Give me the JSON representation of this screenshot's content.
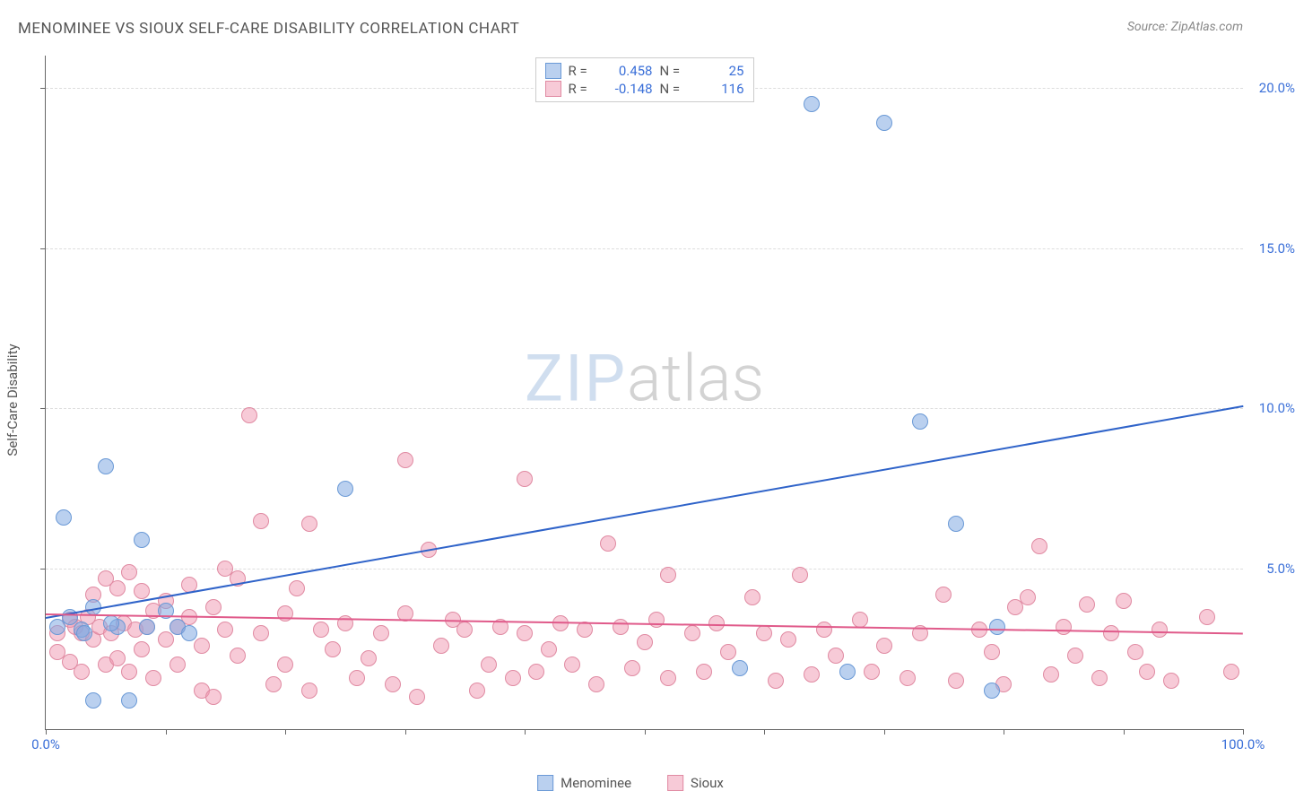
{
  "title": "MENOMINEE VS SIOUX SELF-CARE DISABILITY CORRELATION CHART",
  "source": "Source: ZipAtlas.com",
  "ylabel": "Self-Care Disability",
  "watermark": {
    "zip": "ZIP",
    "atlas": "atlas"
  },
  "chart": {
    "type": "scatter",
    "background_color": "#ffffff",
    "grid_color": "#dddddd",
    "axis_color": "#666666",
    "xlim": [
      0,
      100
    ],
    "ylim": [
      0,
      21
    ],
    "xticks": [
      0,
      10,
      20,
      30,
      40,
      50,
      60,
      70,
      80,
      90,
      100
    ],
    "xtick_labels": {
      "0": "0.0%",
      "100": "100.0%"
    },
    "yticks": [
      5,
      10,
      15,
      20
    ],
    "ytick_labels": {
      "5": "5.0%",
      "10": "10.0%",
      "15": "15.0%",
      "20": "20.0%"
    },
    "point_radius": 9,
    "point_border_width": 1.2,
    "title_fontsize": 17,
    "label_fontsize": 15,
    "tick_color": "#3a6fd8"
  },
  "series": [
    {
      "name": "Menominee",
      "fill_color": "rgba(130,170,225,0.55)",
      "border_color": "#6a99d6",
      "line_color": "#2f63c9",
      "R": "0.458",
      "N": "25",
      "trend": {
        "x1": 0,
        "y1": 3.5,
        "x2": 100,
        "y2": 10.1
      },
      "points": [
        [
          1,
          3.2
        ],
        [
          1.5,
          6.6
        ],
        [
          2,
          3.5
        ],
        [
          3,
          3.1
        ],
        [
          4,
          0.9
        ],
        [
          4,
          3.8
        ],
        [
          5,
          8.2
        ],
        [
          6,
          3.2
        ],
        [
          7,
          0.9
        ],
        [
          8,
          5.9
        ],
        [
          10,
          3.7
        ],
        [
          11,
          3.2
        ],
        [
          12,
          3.0
        ],
        [
          25,
          7.5
        ],
        [
          58,
          1.9
        ],
        [
          64,
          19.5
        ],
        [
          67,
          1.8
        ],
        [
          70,
          18.9
        ],
        [
          73,
          9.6
        ],
        [
          76,
          6.4
        ],
        [
          79,
          1.2
        ],
        [
          79.5,
          3.2
        ],
        [
          3.2,
          3.0
        ],
        [
          5.5,
          3.3
        ],
        [
          8.5,
          3.2
        ]
      ]
    },
    {
      "name": "Sioux",
      "fill_color": "rgba(240,150,175,0.5)",
      "border_color": "#e08aa2",
      "line_color": "#e05a8a",
      "R": "-0.148",
      "N": "116",
      "trend": {
        "x1": 0,
        "y1": 3.6,
        "x2": 100,
        "y2": 3.0
      },
      "points": [
        [
          1,
          3.0
        ],
        [
          1,
          2.4
        ],
        [
          2,
          3.4
        ],
        [
          2,
          2.1
        ],
        [
          2.5,
          3.2
        ],
        [
          3,
          3.0
        ],
        [
          3,
          1.8
        ],
        [
          3.5,
          3.5
        ],
        [
          4,
          2.8
        ],
        [
          4,
          4.2
        ],
        [
          4.5,
          3.2
        ],
        [
          5,
          2.0
        ],
        [
          5,
          4.7
        ],
        [
          5.5,
          3.0
        ],
        [
          6,
          2.2
        ],
        [
          6,
          4.4
        ],
        [
          6.5,
          3.3
        ],
        [
          7,
          1.8
        ],
        [
          7,
          4.9
        ],
        [
          7.5,
          3.1
        ],
        [
          8,
          2.5
        ],
        [
          8,
          4.3
        ],
        [
          8.5,
          3.2
        ],
        [
          9,
          1.6
        ],
        [
          9,
          3.7
        ],
        [
          10,
          2.8
        ],
        [
          10,
          4.0
        ],
        [
          11,
          3.2
        ],
        [
          11,
          2.0
        ],
        [
          12,
          3.5
        ],
        [
          12,
          4.5
        ],
        [
          13,
          2.6
        ],
        [
          13,
          1.2
        ],
        [
          14,
          3.8
        ],
        [
          14,
          1.0
        ],
        [
          15,
          3.1
        ],
        [
          15,
          5.0
        ],
        [
          16,
          2.3
        ],
        [
          16,
          4.7
        ],
        [
          17,
          9.8
        ],
        [
          18,
          6.5
        ],
        [
          18,
          3.0
        ],
        [
          19,
          1.4
        ],
        [
          20,
          3.6
        ],
        [
          20,
          2.0
        ],
        [
          21,
          4.4
        ],
        [
          22,
          6.4
        ],
        [
          22,
          1.2
        ],
        [
          23,
          3.1
        ],
        [
          24,
          2.5
        ],
        [
          25,
          3.3
        ],
        [
          26,
          1.6
        ],
        [
          27,
          2.2
        ],
        [
          28,
          3.0
        ],
        [
          29,
          1.4
        ],
        [
          30,
          8.4
        ],
        [
          30,
          3.6
        ],
        [
          31,
          1.0
        ],
        [
          32,
          5.6
        ],
        [
          33,
          2.6
        ],
        [
          34,
          3.4
        ],
        [
          35,
          3.1
        ],
        [
          36,
          1.2
        ],
        [
          37,
          2.0
        ],
        [
          38,
          3.2
        ],
        [
          39,
          1.6
        ],
        [
          40,
          7.8
        ],
        [
          40,
          3.0
        ],
        [
          41,
          1.8
        ],
        [
          42,
          2.5
        ],
        [
          43,
          3.3
        ],
        [
          44,
          2.0
        ],
        [
          45,
          3.1
        ],
        [
          46,
          1.4
        ],
        [
          47,
          5.8
        ],
        [
          48,
          3.2
        ],
        [
          49,
          1.9
        ],
        [
          50,
          2.7
        ],
        [
          51,
          3.4
        ],
        [
          52,
          4.8
        ],
        [
          52,
          1.6
        ],
        [
          54,
          3.0
        ],
        [
          55,
          1.8
        ],
        [
          56,
          3.3
        ],
        [
          57,
          2.4
        ],
        [
          59,
          4.1
        ],
        [
          60,
          3.0
        ],
        [
          61,
          1.5
        ],
        [
          62,
          2.8
        ],
        [
          63,
          4.8
        ],
        [
          64,
          1.7
        ],
        [
          65,
          3.1
        ],
        [
          66,
          2.3
        ],
        [
          68,
          3.4
        ],
        [
          69,
          1.8
        ],
        [
          70,
          2.6
        ],
        [
          72,
          1.6
        ],
        [
          73,
          3.0
        ],
        [
          75,
          4.2
        ],
        [
          76,
          1.5
        ],
        [
          78,
          3.1
        ],
        [
          79,
          2.4
        ],
        [
          80,
          1.4
        ],
        [
          81,
          3.8
        ],
        [
          82,
          4.1
        ],
        [
          83,
          5.7
        ],
        [
          84,
          1.7
        ],
        [
          85,
          3.2
        ],
        [
          86,
          2.3
        ],
        [
          87,
          3.9
        ],
        [
          88,
          1.6
        ],
        [
          89,
          3.0
        ],
        [
          90,
          4.0
        ],
        [
          91,
          2.4
        ],
        [
          92,
          1.8
        ],
        [
          93,
          3.1
        ],
        [
          94,
          1.5
        ],
        [
          97,
          3.5
        ],
        [
          99,
          1.8
        ]
      ]
    }
  ],
  "legend": {
    "items": [
      {
        "label": "Menominee",
        "series_idx": 0
      },
      {
        "label": "Sioux",
        "series_idx": 1
      }
    ]
  }
}
